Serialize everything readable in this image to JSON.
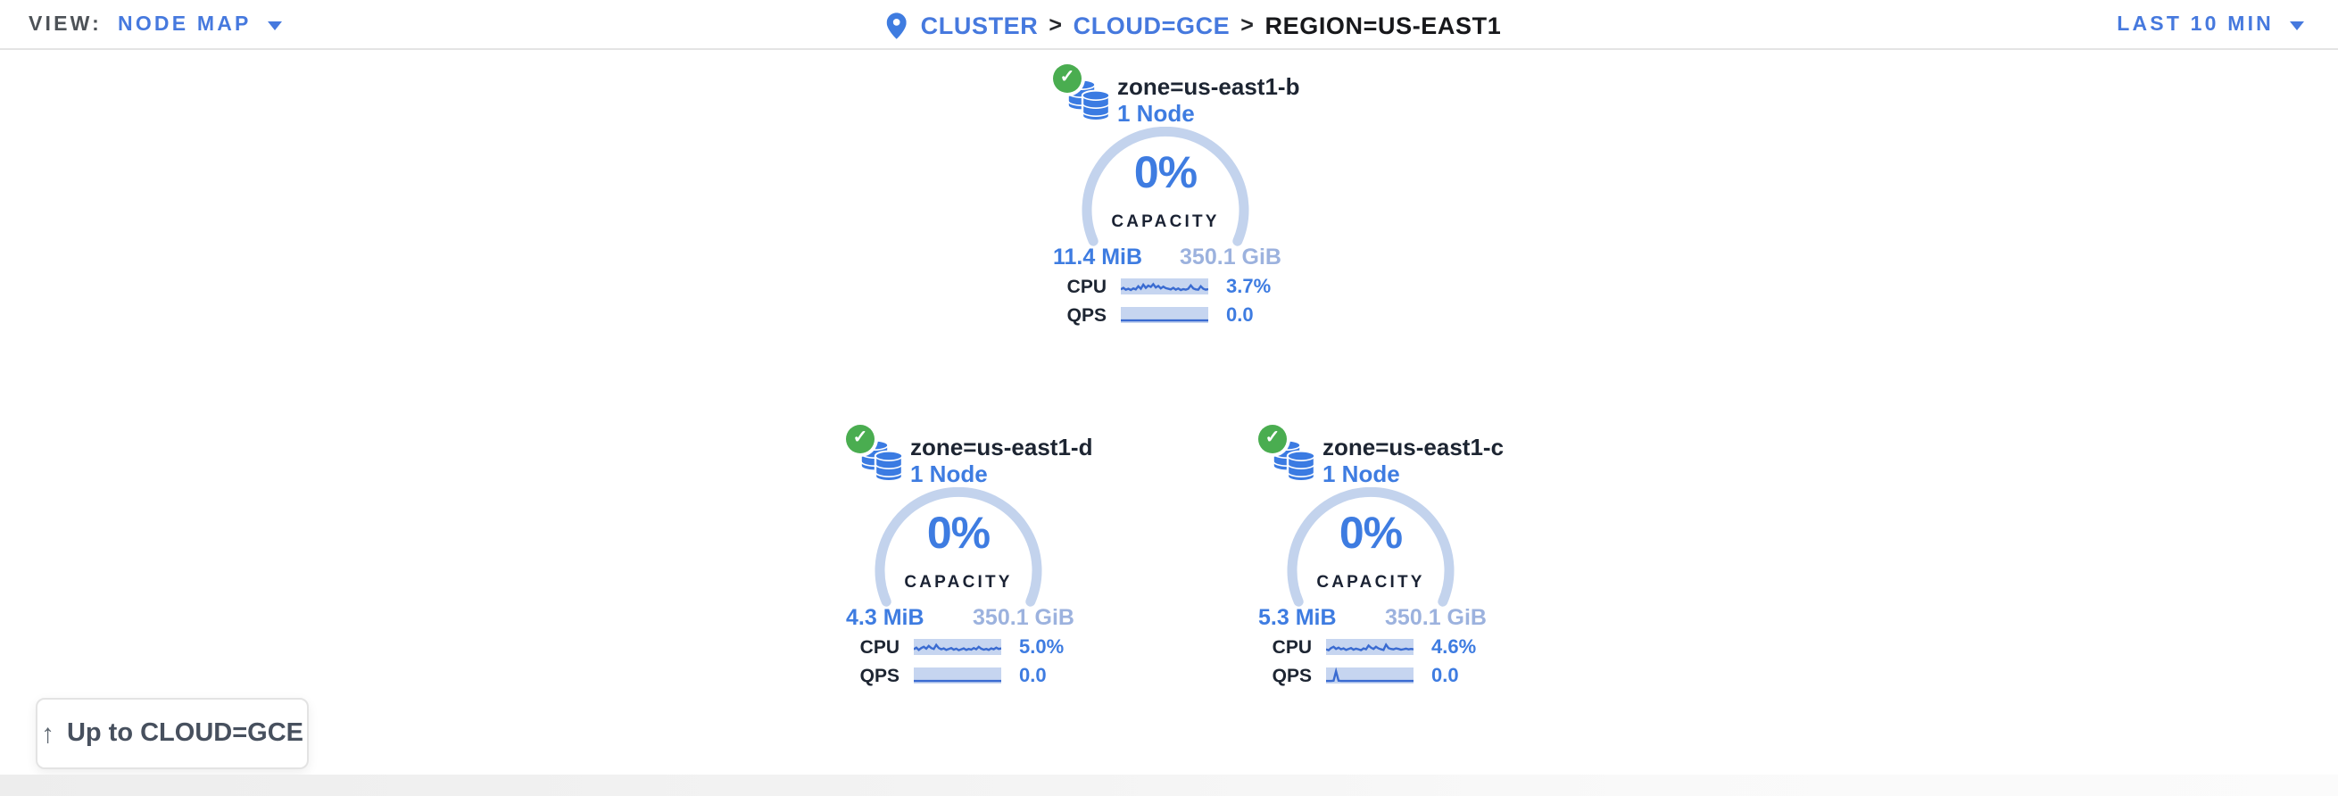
{
  "topbar": {
    "view_label": "VIEW:",
    "view_value": "NODE MAP",
    "time_range": "LAST 10 MIN",
    "separator": ">",
    "breadcrumb": [
      {
        "label": "CLUSTER"
      },
      {
        "label": "CLOUD=GCE"
      },
      {
        "label": "REGION=US-EAST1"
      }
    ]
  },
  "cards": [
    {
      "title": "zone=us-east1-b",
      "subtitle": "1 Node",
      "status": "healthy",
      "capacity_pct": "0%",
      "capacity_label": "CAPACITY",
      "capacity_used": "11.4 MiB",
      "capacity_total": "350.1 GiB",
      "cpu_label": "CPU",
      "cpu_value": "3.7%",
      "qps_label": "QPS",
      "qps_value": "0.0",
      "cpu_spark": [
        0.3,
        0.42,
        0.28,
        0.35,
        0.25,
        0.38,
        0.3,
        0.55,
        0.35,
        0.68,
        0.42,
        0.6,
        0.5,
        0.72,
        0.45,
        0.58,
        0.38,
        0.52,
        0.4,
        0.35,
        0.3,
        0.42,
        0.28,
        0.38,
        0.25,
        0.32,
        0.28,
        0.35,
        0.62,
        0.38,
        0.3,
        0.28,
        0.55,
        0.35,
        0.28,
        0.32
      ],
      "qps_spark": [
        0.1,
        0.1,
        0.1,
        0.1,
        0.1,
        0.1,
        0.1,
        0.1,
        0.1,
        0.1,
        0.1,
        0.1,
        0.1,
        0.1,
        0.1,
        0.1,
        0.1,
        0.1,
        0.1,
        0.1,
        0.1,
        0.1,
        0.1,
        0.1,
        0.1,
        0.1,
        0.1,
        0.1,
        0.1,
        0.1,
        0.1,
        0.1,
        0.1,
        0.1,
        0.1,
        0.1
      ]
    },
    {
      "title": "zone=us-east1-d",
      "subtitle": "1 Node",
      "status": "healthy",
      "capacity_pct": "0%",
      "capacity_label": "CAPACITY",
      "capacity_used": "4.3 MiB",
      "capacity_total": "350.1 GiB",
      "cpu_label": "CPU",
      "cpu_value": "5.0%",
      "qps_label": "QPS",
      "qps_value": "0.0",
      "cpu_spark": [
        0.35,
        0.48,
        0.3,
        0.45,
        0.55,
        0.4,
        0.62,
        0.45,
        0.38,
        0.7,
        0.45,
        0.35,
        0.42,
        0.3,
        0.38,
        0.45,
        0.32,
        0.4,
        0.28,
        0.35,
        0.42,
        0.3,
        0.38,
        0.32,
        0.45,
        0.35,
        0.55,
        0.4,
        0.32,
        0.38,
        0.3,
        0.42,
        0.35,
        0.48,
        0.38,
        0.42
      ],
      "qps_spark": [
        0.1,
        0.1,
        0.1,
        0.1,
        0.1,
        0.1,
        0.1,
        0.1,
        0.1,
        0.1,
        0.1,
        0.1,
        0.1,
        0.1,
        0.1,
        0.1,
        0.1,
        0.1,
        0.1,
        0.1,
        0.1,
        0.1,
        0.1,
        0.1,
        0.1,
        0.1,
        0.1,
        0.1,
        0.1,
        0.1,
        0.1,
        0.1,
        0.1,
        0.1,
        0.1,
        0.1
      ]
    },
    {
      "title": "zone=us-east1-c",
      "subtitle": "1 Node",
      "status": "healthy",
      "capacity_pct": "0%",
      "capacity_label": "CAPACITY",
      "capacity_used": "5.3 MiB",
      "capacity_total": "350.1 GiB",
      "cpu_label": "CPU",
      "cpu_value": "4.6%",
      "qps_label": "QPS",
      "qps_value": "0.0",
      "cpu_spark": [
        0.35,
        0.28,
        0.45,
        0.55,
        0.38,
        0.48,
        0.35,
        0.42,
        0.3,
        0.38,
        0.45,
        0.32,
        0.4,
        0.35,
        0.28,
        0.42,
        0.35,
        0.65,
        0.48,
        0.38,
        0.55,
        0.42,
        0.35,
        0.3,
        0.72,
        0.45,
        0.38,
        0.35,
        0.42,
        0.38,
        0.32,
        0.36,
        0.4,
        0.34,
        0.38,
        0.35
      ],
      "qps_spark": [
        0.1,
        0.1,
        0.1,
        0.12,
        0.88,
        0.12,
        0.1,
        0.1,
        0.1,
        0.1,
        0.1,
        0.1,
        0.1,
        0.1,
        0.1,
        0.1,
        0.1,
        0.1,
        0.1,
        0.1,
        0.1,
        0.1,
        0.1,
        0.1,
        0.1,
        0.1,
        0.1,
        0.1,
        0.1,
        0.1,
        0.1,
        0.1,
        0.1,
        0.1,
        0.1,
        0.1
      ]
    }
  ],
  "up_button": {
    "label": "Up to CLOUD=GCE",
    "icon": "arrow-up"
  },
  "colors": {
    "accent_blue": "#3e7ce1",
    "link_blue": "#4679de",
    "arc_pale_blue": "#c3d3ed",
    "spark_bg": "#c6d5f0",
    "spark_line": "#3a6bd1",
    "status_green": "#4aad50",
    "title_dark": "#1d2532",
    "total_blue_muted": "#9cb2de"
  }
}
